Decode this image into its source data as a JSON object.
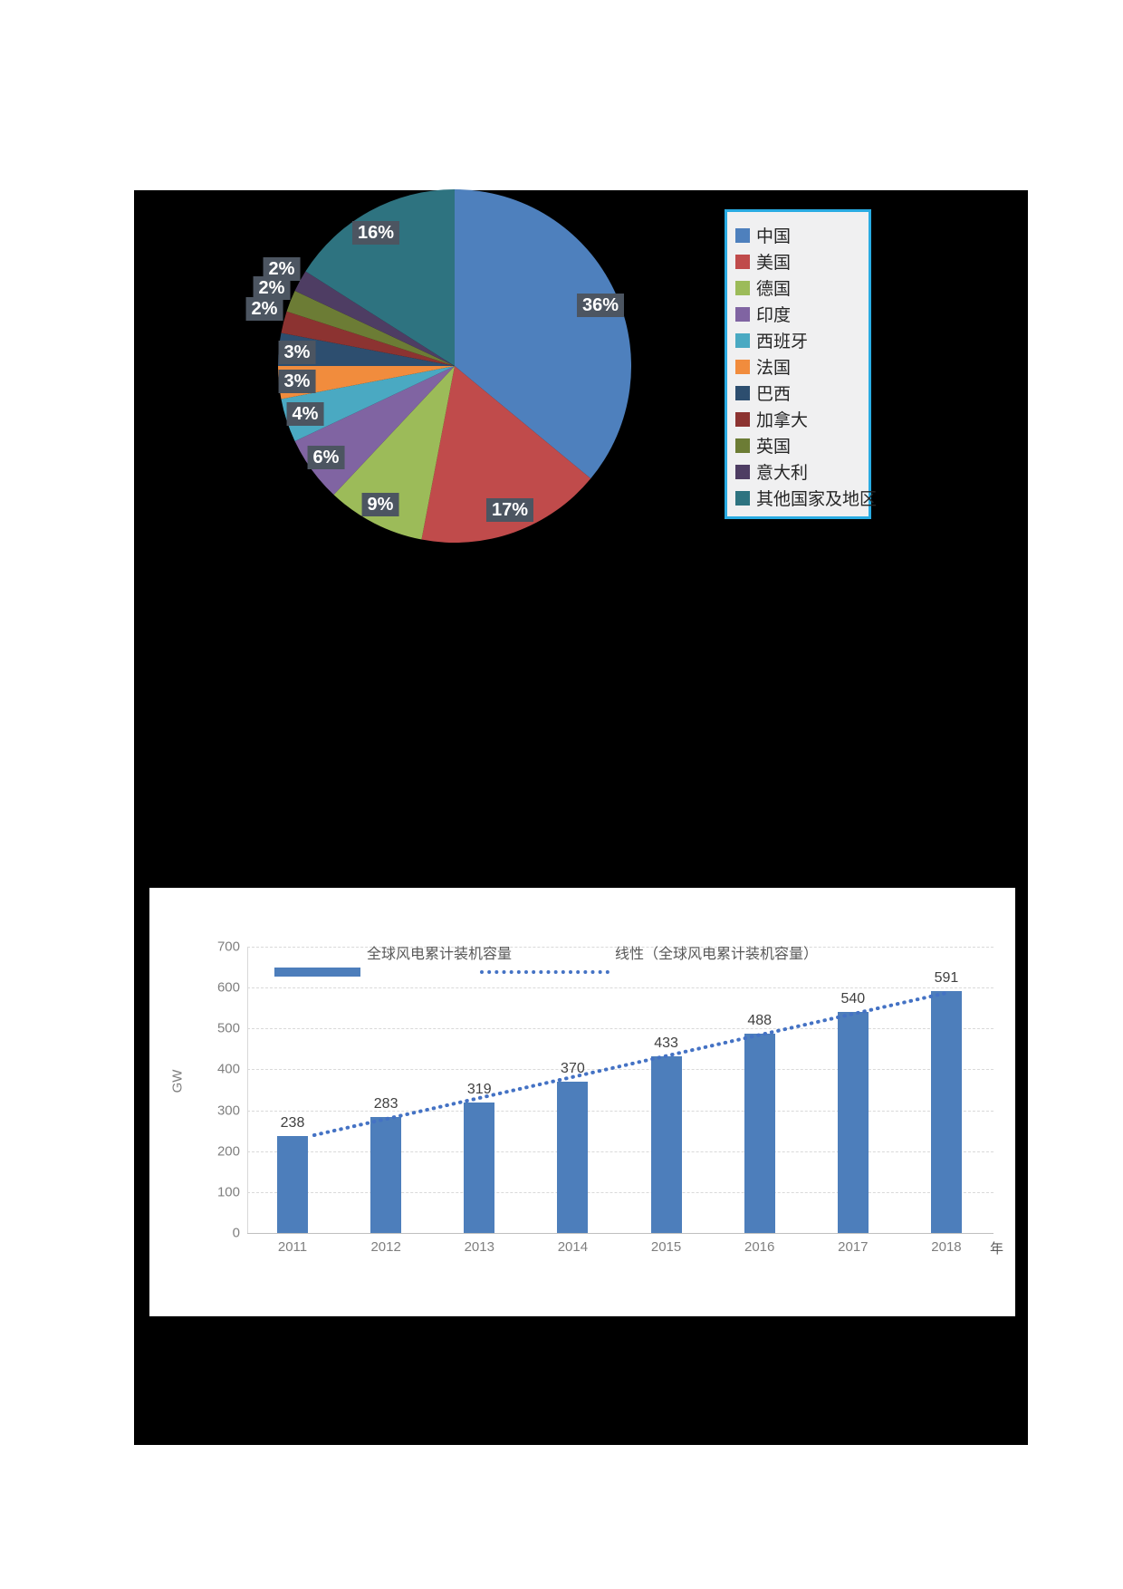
{
  "page": {
    "background": "#ffffff",
    "figure_background": "#000000"
  },
  "pie_legend": {
    "border_color": "#29abe2",
    "background": "#f0f0f1"
  },
  "chart_data": [
    {
      "type": "pie",
      "labels": [
        "中国",
        "美国",
        "德国",
        "印度",
        "西班牙",
        "法国",
        "巴西",
        "加拿大",
        "英国",
        "意大利",
        "其他国家及地区"
      ],
      "values": [
        36,
        17,
        9,
        6,
        4,
        3,
        3,
        2,
        2,
        2,
        16
      ],
      "unit": "%",
      "colors": [
        "#4e80bd",
        "#c04b4b",
        "#9cbb59",
        "#8064a2",
        "#4aa9c2",
        "#f18c3d",
        "#2d4e6f",
        "#8c3331",
        "#6c7c35",
        "#4e3d63",
        "#2e7380"
      ],
      "data_label_texts": [
        "36%",
        "17%",
        "9%",
        "6%",
        "4%",
        "3%",
        "3%",
        "2%",
        "2%",
        "2%",
        "16%"
      ],
      "legend_position": "right",
      "start_angle_deg": 0,
      "direction": "clockwise"
    },
    {
      "type": "bar",
      "categories": [
        "2011",
        "2012",
        "2013",
        "2014",
        "2015",
        "2016",
        "2017",
        "2018"
      ],
      "values": [
        238,
        283,
        319,
        370,
        433,
        488,
        540,
        591
      ],
      "series_label": "全球风电累计装机容量",
      "trendline_label": "线性（全球风电累计装机容量）",
      "ylabel": "GW",
      "xlabel": "年",
      "ylim": [
        0,
        700
      ],
      "ytick_step": 100,
      "yticks": [
        "0",
        "100",
        "200",
        "300",
        "400",
        "500",
        "600",
        "700"
      ],
      "bar_color": "#4d7ebb",
      "trend_color": "#4472c4",
      "grid": true,
      "legend_position": "top"
    }
  ]
}
